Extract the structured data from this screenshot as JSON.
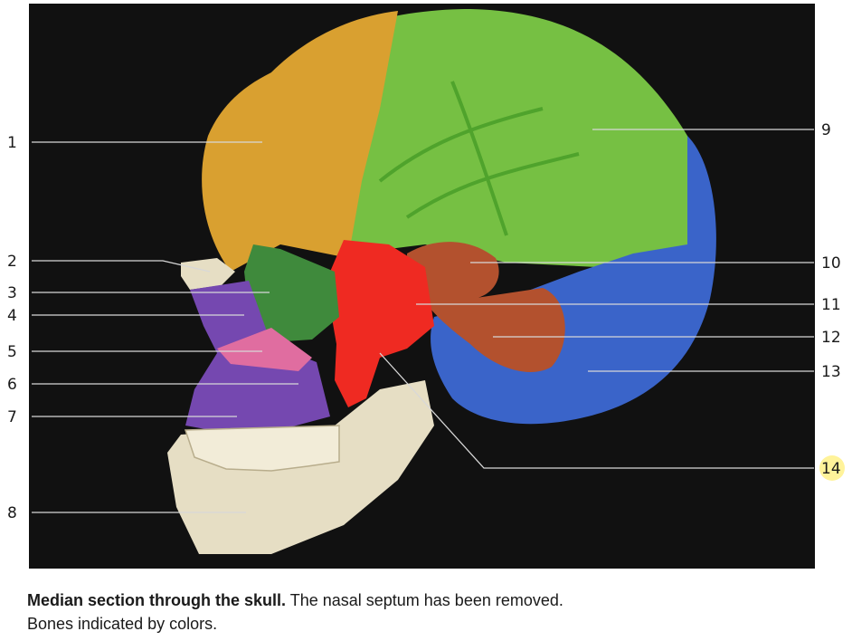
{
  "figure": {
    "labels_left": [
      "1",
      "2",
      "3",
      "4",
      "5",
      "6",
      "7",
      "8"
    ],
    "labels_right": [
      "9",
      "10",
      "11",
      "12",
      "13",
      "14"
    ],
    "highlight_label": "14"
  },
  "colors": {
    "background": "#111111",
    "frontal": "#d9a030",
    "parietal": "#76c043",
    "occipital": "#3a64c9",
    "sphenoid": "#ef2a22",
    "ethmoid": "#3f8a3c",
    "maxilla": "#7548b0",
    "temporal": "#b3512e",
    "nasal_concha": "#e06da0",
    "neutral_bone": "#e6dec4"
  },
  "caption": {
    "title": "Median section through the skull.",
    "text": " The nasal septum has been removed.",
    "line2": "Bones indicated by colors."
  }
}
